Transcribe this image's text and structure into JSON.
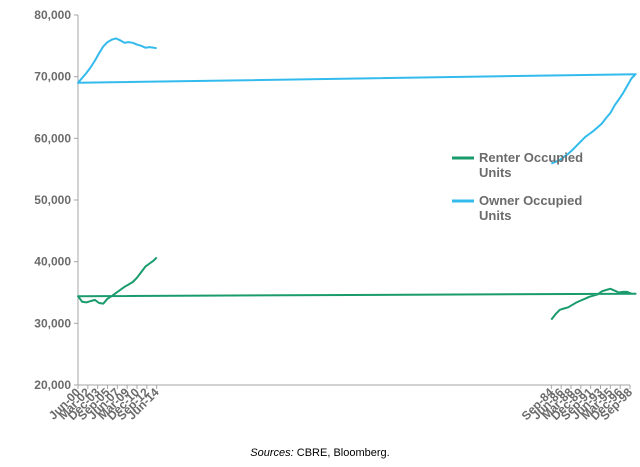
{
  "chart_data": {
    "type": "line",
    "title": "",
    "xlabel": "",
    "ylabel": "",
    "x_tick_labels": [
      "Sep-84",
      "Jun-86",
      "Mar-88",
      "Dec-89",
      "Sep-91",
      "Jun-93",
      "Mar-95",
      "Dec-96",
      "Sep-98",
      "Jun-00",
      "Mar-02",
      "Dec-03",
      "Sep-05",
      "Jun-07",
      "Mar-09",
      "Dec-10",
      "Sep-12",
      "Jun-14"
    ],
    "y_tick_labels": [
      "20,000",
      "30,000",
      "40,000",
      "50,000",
      "60,000",
      "70,000",
      "80,000"
    ],
    "ylim": [
      20000,
      80000
    ],
    "y_ticks": [
      20000,
      30000,
      40000,
      50000,
      60000,
      70000,
      80000
    ],
    "grid": false,
    "legend_position": "right",
    "series": [
      {
        "name_lines": [
          "Renter Occupied",
          "Units"
        ],
        "color": "#1a9b6c",
        "x": [
          "Sep-84",
          "Jun-85",
          "Mar-86",
          "Dec-86",
          "Sep-87",
          "Jun-88",
          "Mar-89",
          "Dec-89",
          "Sep-90",
          "Jun-91",
          "Mar-92",
          "Dec-92",
          "Sep-93",
          "Jun-94",
          "Mar-95",
          "Dec-95",
          "Sep-96",
          "Jun-97",
          "Mar-98",
          "Dec-98",
          "Sep-99",
          "Jun-00",
          "Mar-01",
          "Dec-01",
          "Sep-02",
          "Jun-03",
          "Mar-04",
          "Dec-04",
          "Sep-05",
          "Jun-06",
          "Mar-07",
          "Dec-07",
          "Sep-08",
          "Jun-09",
          "Mar-10",
          "Dec-10",
          "Sep-11",
          "Jun-12",
          "Mar-13",
          "Dec-13",
          "Jun-14"
        ],
        "values": [
          30600,
          31500,
          32200,
          32400,
          32600,
          33000,
          33400,
          33700,
          34000,
          34300,
          34500,
          34700,
          35200,
          35400,
          35600,
          35300,
          35000,
          35100,
          35100,
          34800,
          34800,
          34400,
          33500,
          33400,
          33600,
          33800,
          33300,
          33200,
          34000,
          34400,
          34900,
          35400,
          35900,
          36300,
          36700,
          37400,
          38300,
          39200,
          39700,
          40200,
          40700
        ]
      },
      {
        "name_lines": [
          "Owner Occupied",
          "Units"
        ],
        "color": "#33bbed",
        "x": [
          "Sep-84",
          "Jun-85",
          "Mar-86",
          "Dec-86",
          "Sep-87",
          "Jun-88",
          "Mar-89",
          "Dec-89",
          "Sep-90",
          "Jun-91",
          "Mar-92",
          "Dec-92",
          "Sep-93",
          "Jun-94",
          "Mar-95",
          "Dec-95",
          "Sep-96",
          "Jun-97",
          "Mar-98",
          "Dec-98",
          "Sep-99",
          "Jun-00",
          "Mar-01",
          "Dec-01",
          "Sep-02",
          "Jun-03",
          "Mar-04",
          "Dec-04",
          "Sep-05",
          "Jun-06",
          "Mar-07",
          "Dec-07",
          "Sep-08",
          "Jun-09",
          "Mar-10",
          "Dec-10",
          "Sep-11",
          "Jun-12",
          "Mar-13",
          "Dec-13",
          "Jun-14"
        ],
        "values": [
          55900,
          56200,
          56500,
          57000,
          57500,
          58100,
          58800,
          59500,
          60200,
          60700,
          61200,
          61800,
          62400,
          63300,
          64100,
          65300,
          66300,
          67300,
          68500,
          69700,
          70400,
          69000,
          69800,
          70600,
          71500,
          72600,
          73800,
          74900,
          75600,
          76000,
          76200,
          75900,
          75500,
          75600,
          75500,
          75200,
          75000,
          74700,
          74800,
          74700,
          74600
        ]
      }
    ]
  },
  "source": {
    "label": "Sources:",
    "text": " CBRE, Bloomberg."
  }
}
